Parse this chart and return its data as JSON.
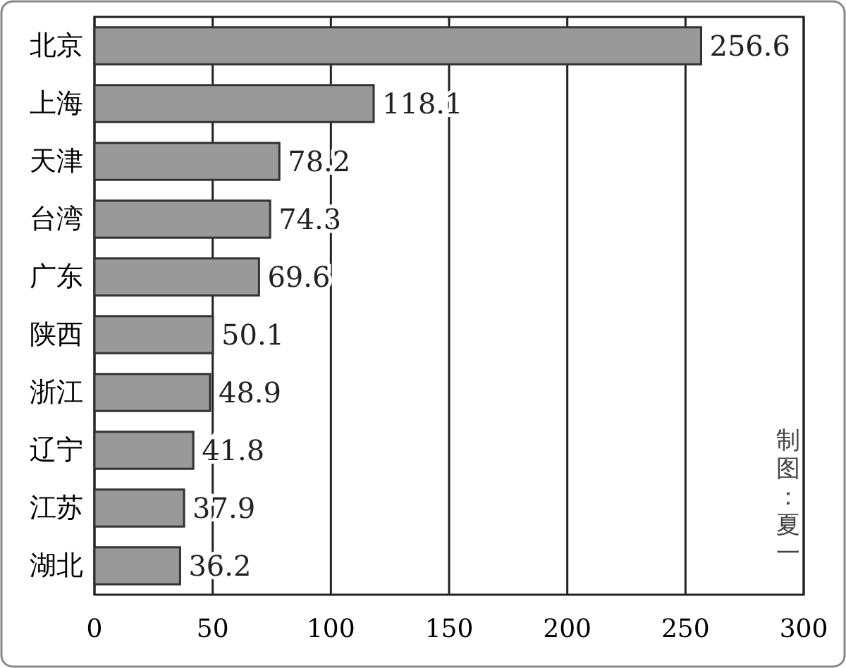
{
  "chart_data": {
    "type": "bar",
    "orientation": "horizontal",
    "categories": [
      "北京",
      "上海",
      "天津",
      "台湾",
      "广东",
      "陕西",
      "浙江",
      "辽宁",
      "江苏",
      "湖北"
    ],
    "values": [
      256.6,
      118.1,
      78.2,
      74.3,
      69.6,
      50.1,
      48.9,
      41.8,
      37.9,
      36.2
    ],
    "color": "#999999",
    "xlim": [
      0,
      300
    ],
    "xticks": [
      0,
      50,
      100,
      150,
      200,
      250,
      300
    ],
    "grid": "x",
    "data_labels": true,
    "annotations": [
      "制图：夏一"
    ]
  }
}
